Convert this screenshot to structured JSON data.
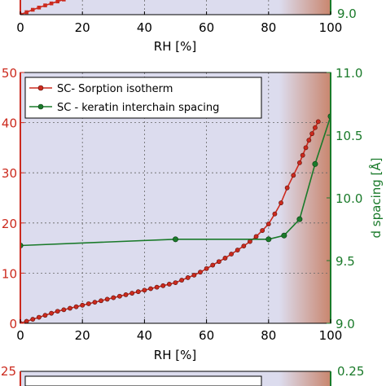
{
  "colors": {
    "red": "#cc2a1e",
    "green": "#1a7a2a",
    "plot_bg": "#dcdcee",
    "wet_zone": "#c9866e"
  },
  "chart_data": [
    {
      "type": "line",
      "panel": "top (cropped)",
      "xlabel": "RH [%]",
      "xlim": [
        0,
        100
      ],
      "x_ticks": [
        "0",
        "20",
        "40",
        "60",
        "80",
        "100"
      ],
      "y_right_ticks": [
        "9.0"
      ],
      "series": [
        {
          "marker": "square",
          "color": "red",
          "x": [
            0,
            2,
            4,
            6,
            8,
            10,
            12,
            14
          ],
          "y": [
            0,
            1.0,
            2.0,
            2.9,
            3.8,
            4.6,
            5.4,
            6.2
          ]
        }
      ]
    },
    {
      "type": "line",
      "panel": "middle",
      "xlabel": "RH [%]",
      "ylabel_right": "d spacing [Å]",
      "xlim": [
        0,
        100
      ],
      "ylim_left": [
        0,
        50
      ],
      "ylim_right": [
        9.0,
        11.0
      ],
      "x_ticks": [
        "0",
        "20",
        "40",
        "60",
        "80",
        "100"
      ],
      "y_left_ticks": [
        "0",
        "10",
        "20",
        "30",
        "40",
        "50"
      ],
      "y_right_ticks": [
        "9.0",
        "9.5",
        "10.0",
        "10.5",
        "11.0"
      ],
      "grid": true,
      "legend": "top-left",
      "series": [
        {
          "name": "SC- Sorption isotherm",
          "axis": "left",
          "color": "red",
          "x": [
            0,
            2,
            4,
            6,
            8,
            10,
            12,
            14,
            16,
            18,
            20,
            22,
            24,
            26,
            28,
            30,
            32,
            34,
            36,
            38,
            40,
            42,
            44,
            46,
            48,
            50,
            52,
            54,
            56,
            58,
            60,
            62,
            64,
            66,
            68,
            70,
            72,
            74,
            76,
            78,
            80,
            82,
            84,
            86,
            88,
            90,
            91,
            92,
            93,
            94,
            95,
            96
          ],
          "y": [
            0,
            0.4,
            0.8,
            1.2,
            1.6,
            2.0,
            2.4,
            2.7,
            3.0,
            3.3,
            3.6,
            3.9,
            4.2,
            4.5,
            4.8,
            5.1,
            5.4,
            5.7,
            6.0,
            6.3,
            6.6,
            6.9,
            7.2,
            7.5,
            7.8,
            8.1,
            8.6,
            9.1,
            9.6,
            10.2,
            10.9,
            11.6,
            12.3,
            13.0,
            13.8,
            14.6,
            15.4,
            16.3,
            17.3,
            18.5,
            19.8,
            21.8,
            24.0,
            27.0,
            29.5,
            32.0,
            33.5,
            35.0,
            36.5,
            37.8,
            39.0,
            40.2
          ]
        },
        {
          "name": "SC - keratin interchain spacing",
          "axis": "right",
          "color": "green",
          "x": [
            0,
            50,
            80,
            85,
            90,
            95,
            100
          ],
          "y": [
            9.62,
            9.67,
            9.67,
            9.7,
            9.83,
            10.27,
            10.65
          ]
        }
      ]
    },
    {
      "type": "line",
      "panel": "bottom (cropped)",
      "y_left_ticks": [
        "25"
      ],
      "y_right_ticks": [
        "0.25"
      ]
    }
  ]
}
